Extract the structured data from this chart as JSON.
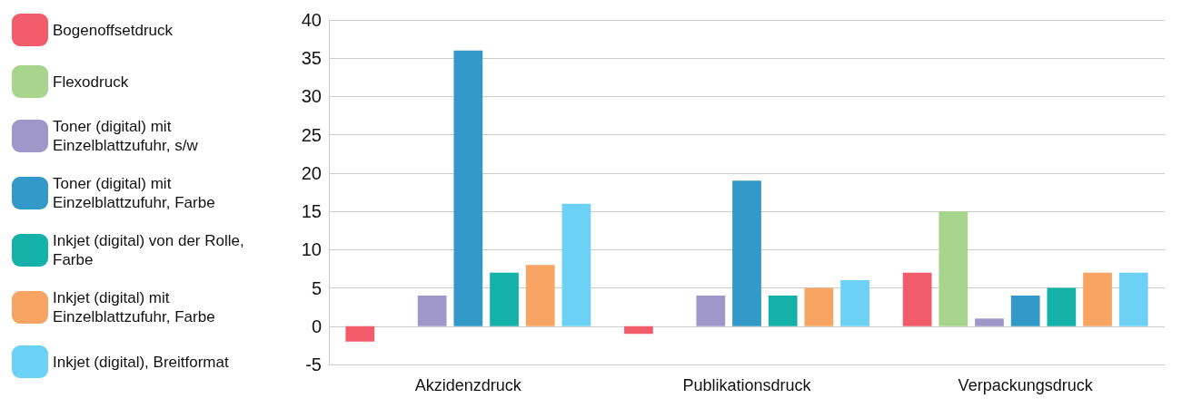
{
  "chart_data": {
    "type": "bar",
    "categories": [
      "Akzidenzdruck",
      "Publikationsdruck",
      "Verpackungsdruck"
    ],
    "series": [
      {
        "name": "Bogenoffsetdruck",
        "color": "#f25c6a",
        "values": [
          -2,
          -1,
          7
        ]
      },
      {
        "name": "Flexodruck",
        "color": "#a8d58e",
        "values": [
          0,
          0,
          15
        ]
      },
      {
        "name": "Toner (digital) mit Einzelblattzufuhr, s/w",
        "color": "#9f97c9",
        "values": [
          4,
          4,
          1
        ]
      },
      {
        "name": "Toner (digital) mit Einzelblattzufuhr, Farbe",
        "color": "#3399c8",
        "values": [
          36,
          19,
          4
        ]
      },
      {
        "name": "Inkjet (digital) von der Rolle, Farbe",
        "color": "#14b1a8",
        "values": [
          7,
          4,
          5
        ]
      },
      {
        "name": "Inkjet (digital) mit Einzelblattzufuhr, Farbe",
        "color": "#f8a463",
        "values": [
          8,
          5,
          7
        ]
      },
      {
        "name": "Inkjet (digital), Breitformat",
        "color": "#6dd0f5",
        "values": [
          16,
          6,
          7
        ]
      }
    ],
    "ylim": [
      -5,
      40
    ],
    "yticks": [
      -5,
      0,
      5,
      10,
      15,
      20,
      25,
      30,
      35,
      40
    ],
    "grid": "y",
    "legend": "left"
  }
}
